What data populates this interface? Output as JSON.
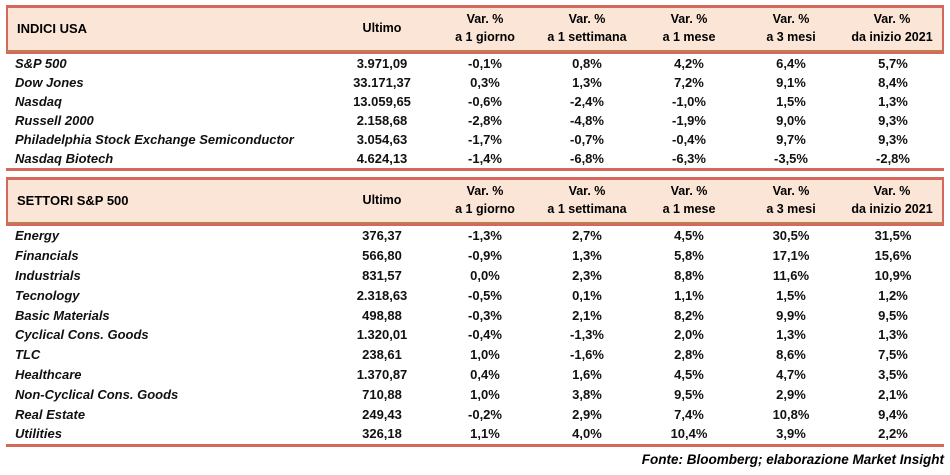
{
  "colors": {
    "header_bg": "#fbe5d6",
    "border_red": "#d5685c",
    "border_brown": "#bf7b52",
    "text": "#111111"
  },
  "tables": [
    {
      "title": "INDICI USA",
      "ultimo_label": "Ultimo",
      "var_headers": [
        {
          "line1": "Var. %",
          "line2": "a 1 giorno"
        },
        {
          "line1": "Var. %",
          "line2": "a 1 settimana"
        },
        {
          "line1": "Var. %",
          "line2": "a 1 mese"
        },
        {
          "line1": "Var. %",
          "line2": "a 3 mesi"
        },
        {
          "line1": "Var. %",
          "line2": "da inizio 2021"
        }
      ],
      "rows": [
        {
          "name": "S&P 500",
          "ultimo": "3.971,09",
          "vars": [
            "-0,1%",
            "0,8%",
            "4,2%",
            "6,4%",
            "5,7%"
          ]
        },
        {
          "name": "Dow Jones",
          "ultimo": "33.171,37",
          "vars": [
            "0,3%",
            "1,3%",
            "7,2%",
            "9,1%",
            "8,4%"
          ]
        },
        {
          "name": "Nasdaq",
          "ultimo": "13.059,65",
          "vars": [
            "-0,6%",
            "-2,4%",
            "-1,0%",
            "1,5%",
            "1,3%"
          ]
        },
        {
          "name": "Russell 2000",
          "ultimo": "2.158,68",
          "vars": [
            "-2,8%",
            "-4,8%",
            "-1,9%",
            "9,0%",
            "9,3%"
          ]
        },
        {
          "name": "Philadelphia Stock Exchange Semiconductor",
          "ultimo": "3.054,63",
          "vars": [
            "-1,7%",
            "-0,7%",
            "-0,4%",
            "9,7%",
            "9,3%"
          ]
        },
        {
          "name": "Nasdaq Biotech",
          "ultimo": "4.624,13",
          "vars": [
            "-1,4%",
            "-6,8%",
            "-6,3%",
            "-3,5%",
            "-2,8%"
          ]
        }
      ]
    },
    {
      "title": "SETTORI S&P 500",
      "ultimo_label": "Ultimo",
      "var_headers": [
        {
          "line1": "Var. %",
          "line2": "a 1 giorno"
        },
        {
          "line1": "Var. %",
          "line2": "a 1 settimana"
        },
        {
          "line1": "Var. %",
          "line2": "a 1 mese"
        },
        {
          "line1": "Var. %",
          "line2": "a 3 mesi"
        },
        {
          "line1": "Var. %",
          "line2": "da inizio 2021"
        }
      ],
      "rows": [
        {
          "name": "Energy",
          "ultimo": "376,37",
          "vars": [
            "-1,3%",
            "2,7%",
            "4,5%",
            "30,5%",
            "31,5%"
          ]
        },
        {
          "name": "Financials",
          "ultimo": "566,80",
          "vars": [
            "-0,9%",
            "1,3%",
            "5,8%",
            "17,1%",
            "15,6%"
          ]
        },
        {
          "name": "Industrials",
          "ultimo": "831,57",
          "vars": [
            "0,0%",
            "2,3%",
            "8,8%",
            "11,6%",
            "10,9%"
          ]
        },
        {
          "name": "Tecnology",
          "ultimo": "2.318,63",
          "vars": [
            "-0,5%",
            "0,1%",
            "1,1%",
            "1,5%",
            "1,2%"
          ]
        },
        {
          "name": "Basic Materials",
          "ultimo": "498,88",
          "vars": [
            "-0,3%",
            "2,1%",
            "8,2%",
            "9,9%",
            "9,5%"
          ]
        },
        {
          "name": "Cyclical Cons. Goods",
          "ultimo": "1.320,01",
          "vars": [
            "-0,4%",
            "-1,3%",
            "2,0%",
            "1,3%",
            "1,3%"
          ]
        },
        {
          "name": "TLC",
          "ultimo": "238,61",
          "vars": [
            "1,0%",
            "-1,6%",
            "2,8%",
            "8,6%",
            "7,5%"
          ]
        },
        {
          "name": "Healthcare",
          "ultimo": "1.370,87",
          "vars": [
            "0,4%",
            "1,6%",
            "4,5%",
            "4,7%",
            "3,5%"
          ]
        },
        {
          "name": "Non-Cyclical Cons. Goods",
          "ultimo": "710,88",
          "vars": [
            "1,0%",
            "3,8%",
            "9,5%",
            "2,9%",
            "2,1%"
          ]
        },
        {
          "name": "Real Estate",
          "ultimo": "249,43",
          "vars": [
            "-0,2%",
            "2,9%",
            "7,4%",
            "10,8%",
            "9,4%"
          ]
        },
        {
          "name": "Utilities",
          "ultimo": "326,18",
          "vars": [
            "1,1%",
            "4,0%",
            "10,4%",
            "3,9%",
            "2,2%"
          ]
        }
      ]
    }
  ],
  "footer": "Fonte: Bloomberg; elaborazione Market Insight"
}
